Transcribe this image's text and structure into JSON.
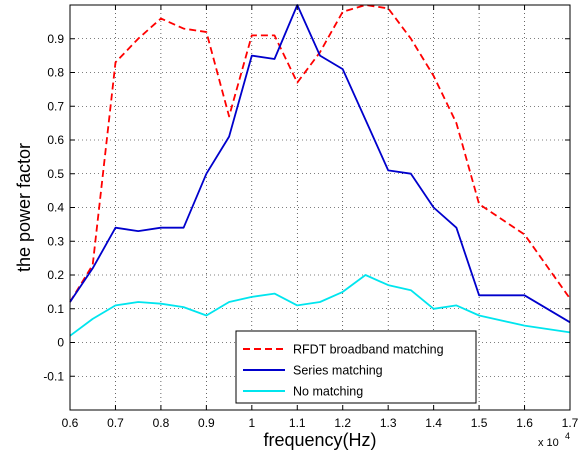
{
  "chart_data": {
    "type": "line",
    "xlabel": "frequency(Hz)",
    "ylabel": "the power factor",
    "x_multiplier": "x 10",
    "x_multiplier_exponent": "4",
    "xlim": [
      0.6,
      1.7
    ],
    "ylim": [
      -0.2,
      1.0
    ],
    "xticks": [
      0.6,
      0.7,
      0.8,
      0.9,
      1.0,
      1.1,
      1.2,
      1.3,
      1.4,
      1.5,
      1.6,
      1.7
    ],
    "xtick_labels": [
      "0.6",
      "0.7",
      "0.8",
      "0.9",
      "1",
      "1.1",
      "1.2",
      "1.3",
      "1.4",
      "1.5",
      "1.6",
      "1.7"
    ],
    "yticks": [
      -0.1,
      0,
      0.1,
      0.2,
      0.3,
      0.4,
      0.5,
      0.6,
      0.7,
      0.8,
      0.9
    ],
    "ytick_labels": [
      "-0.1",
      "0",
      "0.1",
      "0.2",
      "0.3",
      "0.4",
      "0.5",
      "0.6",
      "0.7",
      "0.8",
      "0.9"
    ],
    "grid": true,
    "legend_position": "bottom-right",
    "series": [
      {
        "name": "RFDT broadband matching",
        "color": "#ff0000",
        "dash": "dashed",
        "x": [
          0.6,
          0.65,
          0.7,
          0.75,
          0.8,
          0.85,
          0.9,
          0.95,
          1.0,
          1.05,
          1.1,
          1.15,
          1.2,
          1.25,
          1.3,
          1.35,
          1.4,
          1.45,
          1.5,
          1.6,
          1.7
        ],
        "y": [
          0.12,
          0.23,
          0.83,
          0.9,
          0.96,
          0.93,
          0.92,
          0.67,
          0.91,
          0.91,
          0.77,
          0.86,
          0.98,
          1.0,
          0.99,
          0.9,
          0.79,
          0.65,
          0.41,
          0.32,
          0.13
        ]
      },
      {
        "name": "Series matching",
        "color": "#0000cc",
        "dash": "solid",
        "x": [
          0.6,
          0.65,
          0.7,
          0.75,
          0.8,
          0.85,
          0.9,
          0.95,
          1.0,
          1.05,
          1.1,
          1.15,
          1.2,
          1.25,
          1.3,
          1.35,
          1.4,
          1.45,
          1.5,
          1.6,
          1.7
        ],
        "y": [
          0.12,
          0.22,
          0.34,
          0.33,
          0.34,
          0.34,
          0.5,
          0.61,
          0.85,
          0.84,
          1.0,
          0.85,
          0.81,
          0.66,
          0.51,
          0.5,
          0.4,
          0.34,
          0.14,
          0.14,
          0.06
        ]
      },
      {
        "name": "No matching",
        "color": "#00e5ee",
        "dash": "solid",
        "x": [
          0.6,
          0.65,
          0.7,
          0.75,
          0.8,
          0.85,
          0.9,
          0.95,
          1.0,
          1.05,
          1.1,
          1.15,
          1.2,
          1.25,
          1.3,
          1.35,
          1.4,
          1.45,
          1.5,
          1.6,
          1.7
        ],
        "y": [
          0.02,
          0.07,
          0.11,
          0.12,
          0.115,
          0.105,
          0.08,
          0.12,
          0.135,
          0.145,
          0.11,
          0.12,
          0.15,
          0.2,
          0.17,
          0.155,
          0.1,
          0.11,
          0.08,
          0.05,
          0.03
        ]
      }
    ]
  }
}
